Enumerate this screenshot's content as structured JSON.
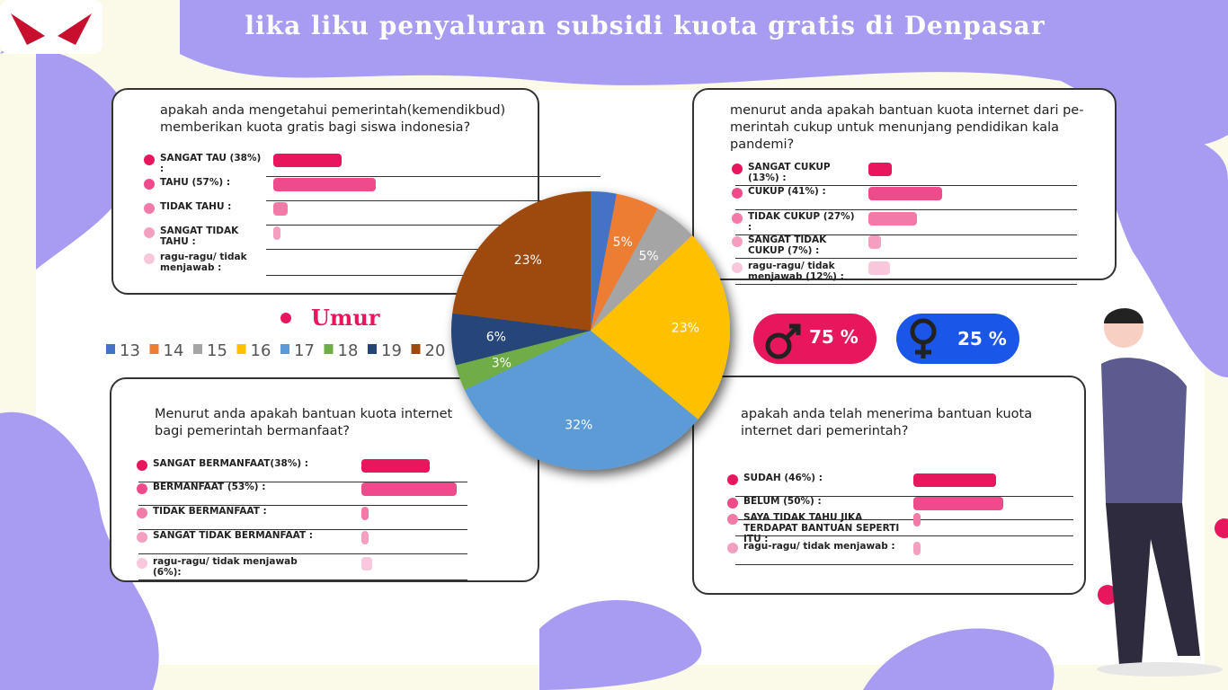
{
  "title": "lika liku penyaluran subsidi  kuota gratis di Denpasar",
  "panels": [
    {
      "question": "apakah anda mengetahui pemerintah(kemendikbud) memberikan kuota gratis bagi siswa indonesia?",
      "items": [
        {
          "label": "SANGAT TAU (38%) :",
          "value": 38
        },
        {
          "label": "TAHU (57%) :",
          "value": 57
        },
        {
          "label": "TIDAK TAHU :",
          "value": 8
        },
        {
          "label": "SANGAT TIDAK TAHU :",
          "value": 3
        },
        {
          "label": "ragu-ragu/ tidak menjawab :",
          "value": null
        }
      ]
    },
    {
      "question": "menurut anda apakah bantuan kuota internet dari pe-merintah cukup untuk menunjang pendidikan kala pandemi?",
      "items": [
        {
          "label": "SANGAT CUKUP (13%) :",
          "value": 13
        },
        {
          "label": "CUKUP (41%) :",
          "value": 41
        },
        {
          "label": "TIDAK CUKUP (27%) :",
          "value": 27
        },
        {
          "label": "SANGAT TIDAK CUKUP (7%) :",
          "value": 7
        },
        {
          "label": "ragu-ragu/ tidak menjawab (12%) :",
          "value": 12
        }
      ]
    },
    {
      "question": "Menurut anda apakah bantuan kuota internet bagi pemerintah bermanfaat?",
      "items": [
        {
          "label": "SANGAT BERMANFAAT(38%) :",
          "value": 38
        },
        {
          "label": "BERMANFAAT (53%) :",
          "value": 53
        },
        {
          "label": "TIDAK BERMANFAAT :",
          "value": 3
        },
        {
          "label": "SANGAT TIDAK BERMANFAAT :",
          "value": 2
        },
        {
          "label": "ragu-ragu/ tidak menjawab (6%):",
          "value": 6
        }
      ]
    },
    {
      "question": "apakah anda telah menerima bantuan kuota internet dari pemerintah?",
      "items": [
        {
          "label": "SUDAH (46%) :",
          "value": 46
        },
        {
          "label": "BELUM (50%) :",
          "value": 50
        },
        {
          "label": "SAYA TIDAK TAHU JIKA TERDAPAT BANTUAN SEPERTI ITU :",
          "value": 2
        },
        {
          "label": "ragu-ragu/ tidak menjawab :",
          "value": 2
        }
      ]
    }
  ],
  "gender": {
    "male": "75 %",
    "female": "25 %"
  },
  "chart_data": {
    "type": "pie",
    "title": "Umur",
    "categories": [
      "13",
      "14",
      "15",
      "16",
      "17",
      "18",
      "19",
      "20"
    ],
    "values": [
      3,
      5,
      5,
      23,
      32,
      3,
      6,
      23
    ],
    "value_labels": [
      null,
      "5%",
      "5%",
      "23%",
      "32%",
      "3%",
      "6%",
      "23%"
    ],
    "colors": [
      "#4472c4",
      "#ed7d31",
      "#a5a5a5",
      "#ffc000",
      "#5b9bd5",
      "#70ad47",
      "#264478",
      "#9e480e"
    ]
  }
}
